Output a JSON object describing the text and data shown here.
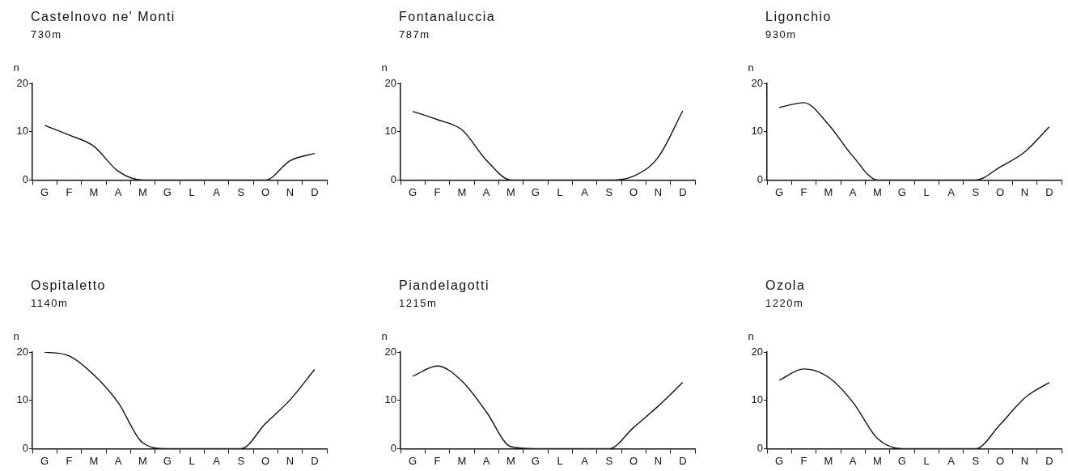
{
  "chart_data": [
    {
      "type": "line",
      "title": "Castelnovo ne' Monti",
      "subtitle": "730m",
      "ylabel": "n",
      "ylim": [
        0,
        20
      ],
      "yticks": [
        0,
        10,
        20
      ],
      "marker": "none",
      "legend": false,
      "categories": [
        "G",
        "F",
        "M",
        "A",
        "M",
        "G",
        "L",
        "A",
        "S",
        "O",
        "N",
        "D"
      ],
      "series": [
        {
          "color": "#111111",
          "values": [
            11.3,
            9.3,
            7.0,
            1.8,
            0,
            0,
            0,
            0,
            0,
            0,
            4.0,
            5.5
          ]
        }
      ]
    },
    {
      "type": "line",
      "title": "Fontanaluccia",
      "subtitle": "787m",
      "ylabel": "n",
      "ylim": [
        0,
        20
      ],
      "yticks": [
        0,
        10,
        20
      ],
      "marker": "none",
      "legend": false,
      "categories": [
        "G",
        "F",
        "M",
        "A",
        "M",
        "G",
        "L",
        "A",
        "S",
        "O",
        "N",
        "D"
      ],
      "series": [
        {
          "color": "#111111",
          "values": [
            14.2,
            12.5,
            10.4,
            4.1,
            0,
            0,
            0,
            0,
            0,
            0.8,
            4.7,
            14.3
          ]
        }
      ]
    },
    {
      "type": "line",
      "title": "Ligonchio",
      "subtitle": "930m",
      "ylabel": "n",
      "ylim": [
        0,
        20
      ],
      "yticks": [
        0,
        10,
        20
      ],
      "marker": "none",
      "legend": false,
      "categories": [
        "G",
        "F",
        "M",
        "A",
        "M",
        "G",
        "L",
        "A",
        "S",
        "O",
        "N",
        "D"
      ],
      "series": [
        {
          "color": "#111111",
          "values": [
            15.0,
            16.0,
            11.5,
            4.9,
            0,
            0,
            0,
            0,
            0,
            2.7,
            5.8,
            11.0
          ]
        }
      ]
    },
    {
      "type": "line",
      "title": "Ospitaletto",
      "subtitle": "1140m",
      "ylabel": "n",
      "ylim": [
        0,
        20
      ],
      "yticks": [
        0,
        10,
        20
      ],
      "marker": "none",
      "legend": false,
      "categories": [
        "G",
        "F",
        "M",
        "A",
        "M",
        "G",
        "L",
        "A",
        "S",
        "O",
        "N",
        "D"
      ],
      "series": [
        {
          "color": "#111111",
          "values": [
            20,
            19.2,
            15.3,
            9.5,
            1.2,
            0,
            0,
            0,
            0,
            5.2,
            10.1,
            16.4
          ]
        }
      ]
    },
    {
      "type": "line",
      "title": "Piandelagotti",
      "subtitle": "1215m",
      "ylabel": "n",
      "ylim": [
        0,
        20
      ],
      "yticks": [
        0,
        10,
        20
      ],
      "marker": "none",
      "legend": false,
      "categories": [
        "G",
        "F",
        "M",
        "A",
        "M",
        "G",
        "L",
        "A",
        "S",
        "O",
        "N",
        "D"
      ],
      "series": [
        {
          "color": "#111111",
          "values": [
            15.0,
            17.1,
            14.0,
            7.6,
            0.4,
            0,
            0,
            0,
            0,
            4.4,
            8.8,
            13.7
          ]
        }
      ]
    },
    {
      "type": "line",
      "title": "Ozola",
      "subtitle": "1220m",
      "ylabel": "n",
      "ylim": [
        0,
        20
      ],
      "yticks": [
        0,
        10,
        20
      ],
      "marker": "none",
      "legend": false,
      "categories": [
        "G",
        "F",
        "M",
        "A",
        "M",
        "G",
        "L",
        "A",
        "S",
        "O",
        "N",
        "D"
      ],
      "series": [
        {
          "color": "#111111",
          "values": [
            14.2,
            16.5,
            14.8,
            9.6,
            2.1,
            0,
            0,
            0,
            0,
            5.0,
            10.5,
            13.7
          ]
        }
      ]
    }
  ]
}
